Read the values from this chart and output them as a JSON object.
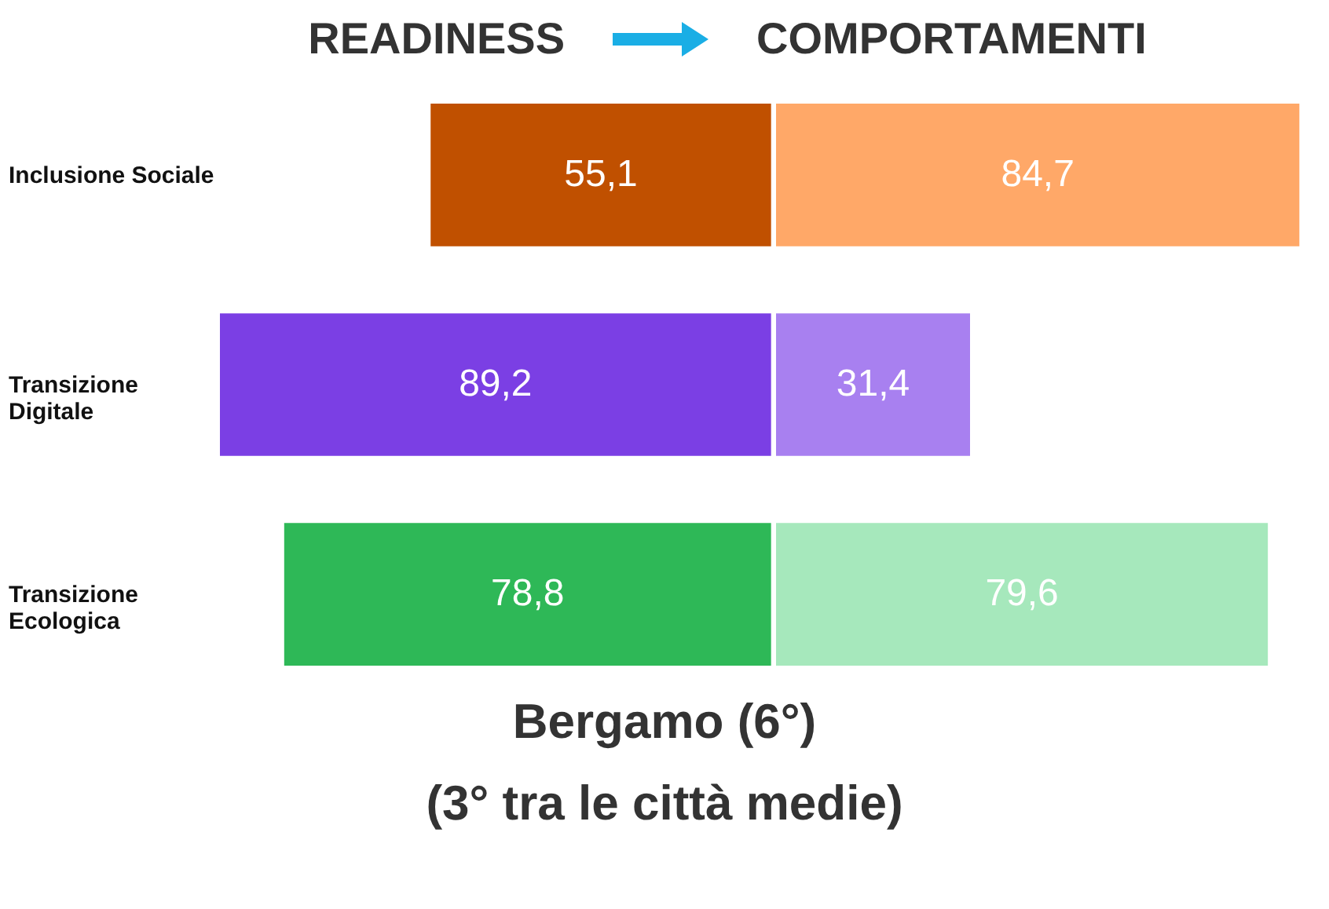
{
  "chart_data": [
    {
      "type": "bar",
      "orientation": "horizontal",
      "categories": [
        "Inclusione Sociale",
        "Transizione Digitale",
        "Transizione Ecologica"
      ],
      "series": [
        {
          "name": "READINESS",
          "colors": [
            "#c05000",
            "#7b3fe4",
            "#2eb857"
          ],
          "values": [
            55.1,
            89.2,
            78.8
          ],
          "value_labels": [
            "55,1",
            "89,2",
            "78,8"
          ]
        }
      ],
      "annotations": [
        "Bergamo (6°)",
        "(3° tra le città medie)"
      ]
    },
    {
      "type": "bar",
      "orientation": "horizontal",
      "categories": [
        null,
        null,
        null
      ],
      "tick_labels": false,
      "series": [
        {
          "name": "COMPORTAMENTI",
          "colors": [
            "#ffa868",
            "#a880f0",
            "#a6e8bc"
          ],
          "values": [
            84.7,
            31.4,
            79.6
          ],
          "value_labels": [
            "84,7",
            "31,4",
            "79,6"
          ]
        }
      ]
    }
  ]
}
